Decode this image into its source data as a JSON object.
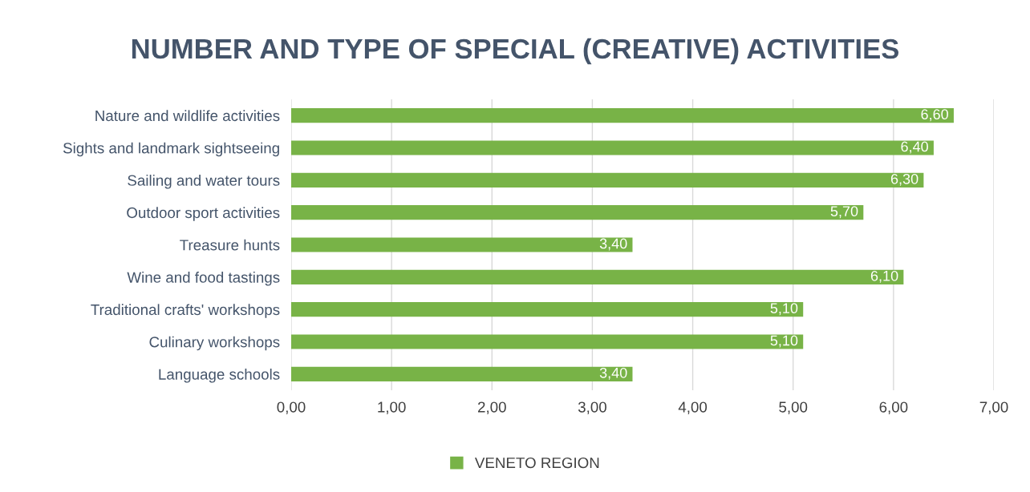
{
  "chart_data": {
    "type": "bar",
    "orientation": "horizontal",
    "title": "NUMBER AND TYPE OF SPECIAL (CREATIVE) ACTIVITIES",
    "categories": [
      "Nature and wildlife activities",
      "Sights and landmark sightseeing",
      "Sailing and water tours",
      "Outdoor sport activities",
      "Treasure hunts",
      "Wine and food tastings",
      "Traditional crafts' workshops",
      "Culinary workshops",
      "Language schools"
    ],
    "series": [
      {
        "name": "VENETO REGION",
        "color": "#78b347",
        "values": [
          6.6,
          6.4,
          6.3,
          5.7,
          3.4,
          6.1,
          5.1,
          5.1,
          3.4
        ],
        "value_labels": [
          "6,60",
          "6,40",
          "6,30",
          "5,70",
          "3,40",
          "6,10",
          "5,10",
          "5,10",
          "3,40"
        ]
      }
    ],
    "xlim": [
      0,
      7
    ],
    "xticks": [
      {
        "value": 0,
        "label": "0,00"
      },
      {
        "value": 1,
        "label": "1,00"
      },
      {
        "value": 2,
        "label": "2,00"
      },
      {
        "value": 3,
        "label": "3,00"
      },
      {
        "value": 4,
        "label": "4,00"
      },
      {
        "value": 5,
        "label": "5,00"
      },
      {
        "value": 6,
        "label": "6,00"
      },
      {
        "value": 7,
        "label": "7,00"
      }
    ],
    "grid": "x",
    "legend": "bottom"
  }
}
